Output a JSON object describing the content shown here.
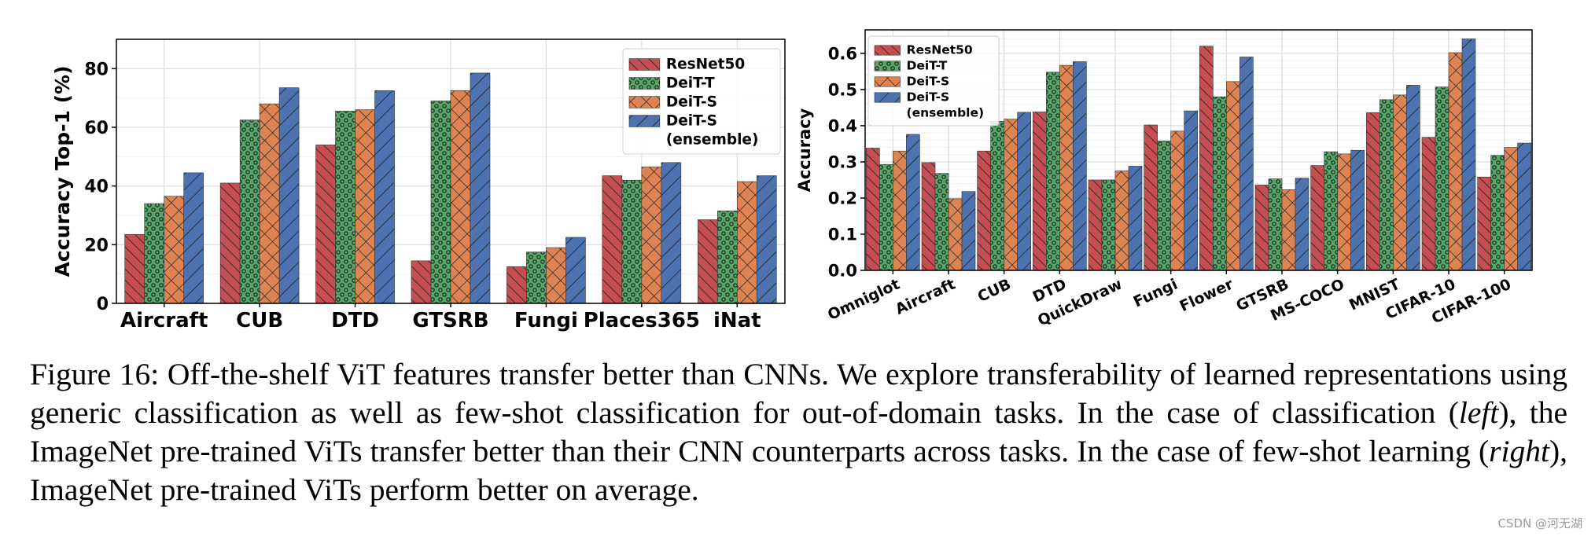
{
  "colors": {
    "resnet": "#c44e52",
    "deit_t": "#55a868",
    "deit_s": "#dd8452",
    "ensemble": "#4c72b0",
    "grid": "#dddddd",
    "axis": "#000000"
  },
  "chart_data": [
    {
      "type": "bar",
      "title": "",
      "xlabel": "",
      "ylabel": "Accuracy Top-1 (%)",
      "ylim": [
        0,
        90
      ],
      "yticks": [
        "0",
        "20",
        "40",
        "60",
        "80"
      ],
      "ytick_values": [
        0,
        20,
        40,
        60,
        80
      ],
      "grid": true,
      "legend_position": "top-right",
      "categories": [
        "Aircraft",
        "CUB",
        "DTD",
        "GTSRB",
        "Fungi",
        "Places365",
        "iNat"
      ],
      "series": [
        {
          "name": "ResNet50",
          "color_key": "resnet",
          "hatch": "diag",
          "values": [
            23.5,
            41,
            54,
            14.5,
            12.5,
            43.5,
            28.5
          ]
        },
        {
          "name": "DeiT-T",
          "color_key": "deit_t",
          "hatch": "dots",
          "values": [
            34,
            62.5,
            65.5,
            69,
            17.5,
            42,
            31.5
          ]
        },
        {
          "name": "DeiT-S",
          "color_key": "deit_s",
          "hatch": "cross",
          "values": [
            36.5,
            68,
            66,
            72.5,
            19,
            46.5,
            41.5
          ]
        },
        {
          "name": "DeiT-S (ensemble)",
          "name_lines": [
            "DeiT-S",
            "(ensemble)"
          ],
          "color_key": "ensemble",
          "hatch": "back",
          "values": [
            44.5,
            73.5,
            72.5,
            78.5,
            22.5,
            48,
            43.5
          ]
        }
      ]
    },
    {
      "type": "bar",
      "title": "",
      "xlabel": "",
      "ylabel": "Accuracy",
      "ylim": [
        0,
        0.665
      ],
      "yticks": [
        "0.0",
        "0.1",
        "0.2",
        "0.3",
        "0.4",
        "0.5",
        "0.6"
      ],
      "ytick_values": [
        0,
        0.1,
        0.2,
        0.3,
        0.4,
        0.5,
        0.6
      ],
      "grid": true,
      "legend_position": "top-left",
      "categories": [
        "Omniglot",
        "Aircraft",
        "CUB",
        "DTD",
        "QuickDraw",
        "Fungi",
        "Flower",
        "GTSRB",
        "MS-COCO",
        "MNIST",
        "CIFAR-10",
        "CIFAR-100"
      ],
      "series": [
        {
          "name": "ResNet50",
          "color_key": "resnet",
          "hatch": "diag",
          "values": [
            0.338,
            0.298,
            0.33,
            0.438,
            0.25,
            0.402,
            0.62,
            0.236,
            0.29,
            0.436,
            0.368,
            0.258
          ]
        },
        {
          "name": "DeiT-T",
          "color_key": "deit_t",
          "hatch": "dots",
          "values": [
            0.293,
            0.268,
            0.412,
            0.548,
            0.25,
            0.358,
            0.48,
            0.253,
            0.328,
            0.472,
            0.507,
            0.318
          ]
        },
        {
          "name": "DeiT-S",
          "color_key": "deit_s",
          "hatch": "cross",
          "values": [
            0.33,
            0.198,
            0.418,
            0.567,
            0.275,
            0.385,
            0.522,
            0.223,
            0.322,
            0.485,
            0.602,
            0.34
          ]
        },
        {
          "name": "DeiT-S (ensemble)",
          "name_lines": [
            "DeiT-S",
            "(ensemble)"
          ],
          "color_key": "ensemble",
          "hatch": "back",
          "values": [
            0.376,
            0.218,
            0.437,
            0.577,
            0.288,
            0.441,
            0.59,
            0.255,
            0.332,
            0.512,
            0.64,
            0.352
          ]
        }
      ]
    }
  ],
  "caption": {
    "label": "Figure 16:",
    "text_1": "Off-the-shelf ViT features transfer better than CNNs. We explore transferability of learned representations using generic classification as well as few-shot classification for out-of-domain tasks. In the case of classification (",
    "em_1": "left",
    "text_2": "), the ImageNet pre-trained ViTs transfer better than their CNN counterparts across tasks. In the case of few-shot learning (",
    "em_2": "right",
    "text_3": "), ImageNet pre-trained ViTs perform better on average."
  },
  "watermark": "CSDN @河无湖"
}
